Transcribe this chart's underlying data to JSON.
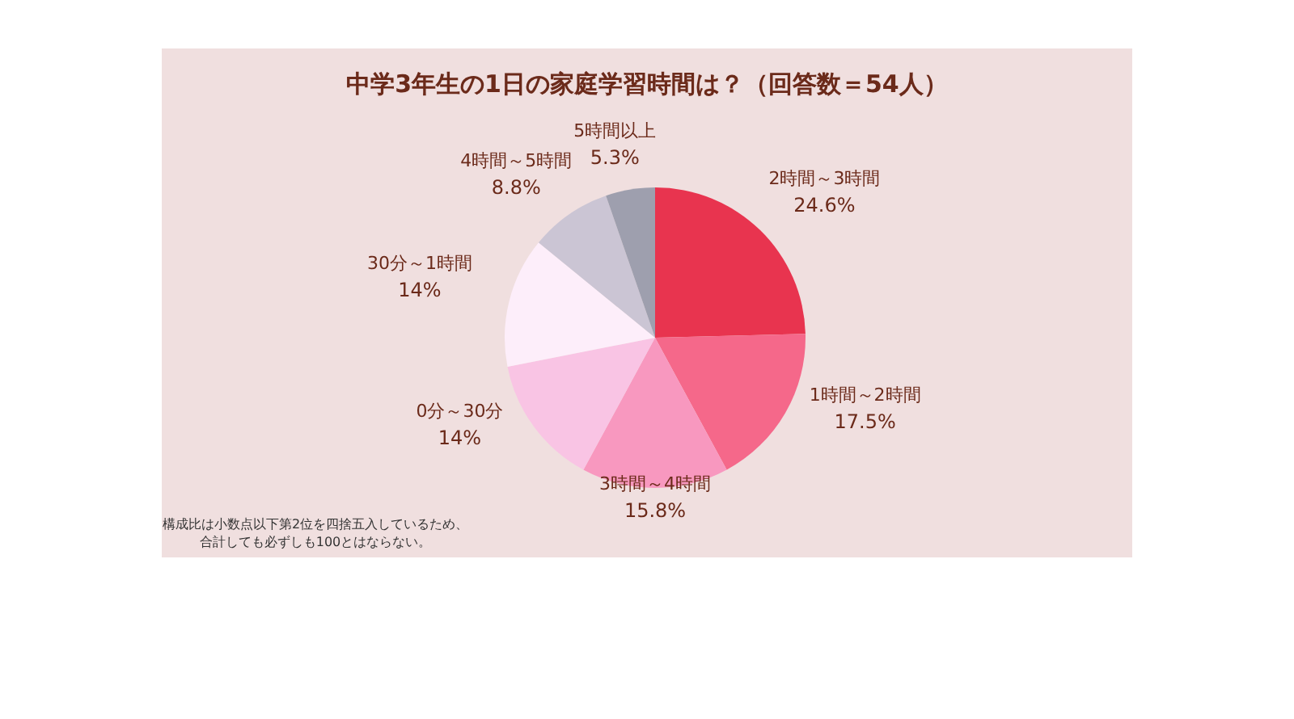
{
  "chart_data": {
    "type": "pie",
    "title": "中学3年生の1日の家庭学習時間は？（回答数＝54人）",
    "categories": [
      "2時間～3時間",
      "1時間～2時間",
      "3時間～4時間",
      "0分～30分",
      "30分～1時間",
      "4時間～5時間",
      "5時間以上"
    ],
    "values": [
      24.6,
      17.5,
      15.8,
      14,
      14,
      8.8,
      5.3
    ],
    "value_labels": [
      "24.6%",
      "17.5%",
      "15.8%",
      "14%",
      "14%",
      "8.8%",
      "5.3%"
    ],
    "colors": [
      "#e8344f",
      "#f5688a",
      "#f898bf",
      "#f9c4e4",
      "#fdeefa",
      "#cbc5d4",
      "#9e9fae"
    ],
    "annotations": [
      "構成比は小数点以下第2位を四捨五入しているため、合計しても必ずしも100とはならない。"
    ]
  }
}
